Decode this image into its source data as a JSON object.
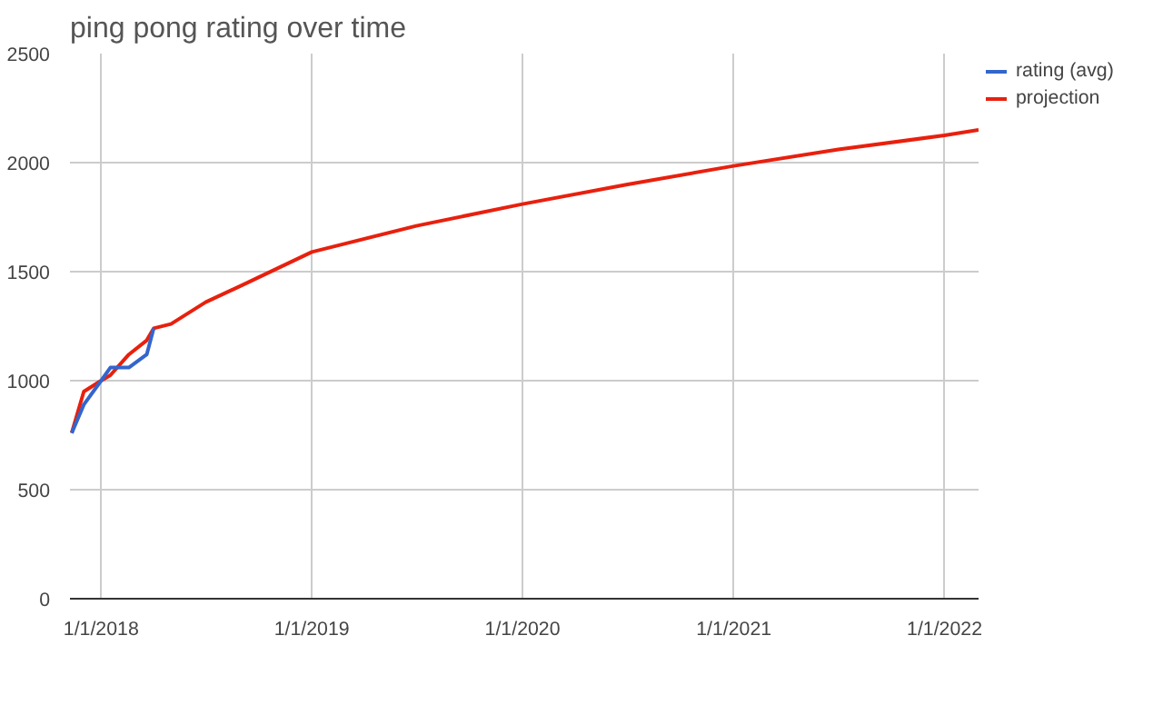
{
  "chart_data": {
    "type": "line",
    "title": "ping pong rating over time",
    "xlim": [
      "2017-11-08",
      "2022-03-01"
    ],
    "xticks": [
      {
        "value": "2018-01-01",
        "label": "1/1/2018"
      },
      {
        "value": "2019-01-01",
        "label": "1/1/2019"
      },
      {
        "value": "2020-01-01",
        "label": "1/1/2020"
      },
      {
        "value": "2021-01-01",
        "label": "1/1/2021"
      },
      {
        "value": "2022-01-01",
        "label": "1/1/2022"
      }
    ],
    "ylim": [
      0,
      2500
    ],
    "yticks": [
      0,
      500,
      1000,
      1500,
      2000,
      2500
    ],
    "grid": true,
    "legend": "right",
    "marker": "none",
    "line_style": "solid",
    "series": [
      {
        "name": "rating (avg)",
        "color": "#3366cc",
        "x": [
          "2017-11-11",
          "2017-12-02",
          "2018-01-01",
          "2018-01-17",
          "2018-02-18",
          "2018-03-21",
          "2018-04-02"
        ],
        "values": [
          760,
          890,
          1000,
          1060,
          1060,
          1120,
          1240
        ]
      },
      {
        "name": "projection",
        "color": "#e8200e",
        "x": [
          "2017-11-11",
          "2017-12-02",
          "2018-01-01",
          "2018-01-17",
          "2018-02-18",
          "2018-03-21",
          "2018-04-02",
          "2018-05-02",
          "2018-07-01",
          "2018-09-04",
          "2019-01-01",
          "2019-07-01",
          "2020-01-01",
          "2020-07-01",
          "2021-01-01",
          "2021-07-01",
          "2022-01-01",
          "2022-03-01"
        ],
        "values": [
          760,
          950,
          1000,
          1025,
          1120,
          1185,
          1240,
          1260,
          1360,
          1440,
          1590,
          1710,
          1810,
          1900,
          1985,
          2060,
          2125,
          2150
        ]
      }
    ]
  }
}
